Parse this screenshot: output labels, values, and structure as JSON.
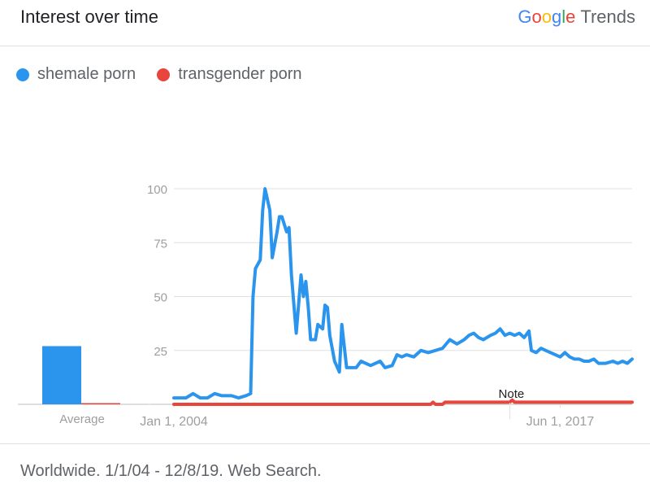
{
  "header": {
    "title": "Interest over time"
  },
  "brand": {
    "google": [
      "G",
      "o",
      "o",
      "g",
      "l",
      "e"
    ],
    "trends": "Trends"
  },
  "legend": [
    {
      "label": "shemale porn",
      "color": "#2b95ee"
    },
    {
      "label": "transgender porn",
      "color": "#e8453c"
    }
  ],
  "footer": {
    "text": "Worldwide. 1/1/04 - 12/8/19. Web Search."
  },
  "chart_data": {
    "type": "line",
    "ylim": [
      0,
      100
    ],
    "yticks": [
      25,
      50,
      75,
      100
    ],
    "x_range": [
      "2004-01",
      "2019-12"
    ],
    "xtick_labels": [
      {
        "label": "Jan 1, 2004",
        "x": "2004-01"
      },
      {
        "label": "Jun 1, 2017",
        "x": "2017-06"
      }
    ],
    "grid": true,
    "legend_position": "top-left",
    "average": {
      "label": "Average",
      "values": [
        27,
        0
      ]
    },
    "note": {
      "label": "Note",
      "x": "2015-09"
    },
    "series": [
      {
        "name": "shemale porn",
        "color": "#2b95ee",
        "points": [
          [
            "2004-01",
            3
          ],
          [
            "2004-06",
            3
          ],
          [
            "2004-09",
            5
          ],
          [
            "2004-12",
            3
          ],
          [
            "2005-03",
            3
          ],
          [
            "2005-06",
            5
          ],
          [
            "2005-09",
            4
          ],
          [
            "2006-01",
            4
          ],
          [
            "2006-04",
            3
          ],
          [
            "2006-07",
            4
          ],
          [
            "2006-09",
            5
          ],
          [
            "2006-10",
            50
          ],
          [
            "2006-11",
            63
          ],
          [
            "2007-01",
            67
          ],
          [
            "2007-02",
            90
          ],
          [
            "2007-03",
            100
          ],
          [
            "2007-05",
            90
          ],
          [
            "2007-06",
            68
          ],
          [
            "2007-08",
            80
          ],
          [
            "2007-09",
            87
          ],
          [
            "2007-10",
            87
          ],
          [
            "2007-12",
            80
          ],
          [
            "2008-01",
            82
          ],
          [
            "2008-02",
            60
          ],
          [
            "2008-04",
            33
          ],
          [
            "2008-06",
            60
          ],
          [
            "2008-07",
            50
          ],
          [
            "2008-08",
            57
          ],
          [
            "2008-09",
            45
          ],
          [
            "2008-10",
            30
          ],
          [
            "2008-12",
            30
          ],
          [
            "2009-01",
            37
          ],
          [
            "2009-03",
            35
          ],
          [
            "2009-04",
            46
          ],
          [
            "2009-05",
            45
          ],
          [
            "2009-06",
            32
          ],
          [
            "2009-08",
            20
          ],
          [
            "2009-10",
            15
          ],
          [
            "2009-11",
            37
          ],
          [
            "2010-01",
            17
          ],
          [
            "2010-05",
            17
          ],
          [
            "2010-07",
            20
          ],
          [
            "2010-11",
            18
          ],
          [
            "2011-03",
            20
          ],
          [
            "2011-05",
            17
          ],
          [
            "2011-08",
            18
          ],
          [
            "2011-10",
            23
          ],
          [
            "2011-12",
            22
          ],
          [
            "2012-02",
            23
          ],
          [
            "2012-05",
            22
          ],
          [
            "2012-08",
            25
          ],
          [
            "2012-11",
            24
          ],
          [
            "2013-02",
            25
          ],
          [
            "2013-05",
            26
          ],
          [
            "2013-08",
            30
          ],
          [
            "2013-11",
            28
          ],
          [
            "2014-02",
            30
          ],
          [
            "2014-04",
            32
          ],
          [
            "2014-06",
            33
          ],
          [
            "2014-08",
            31
          ],
          [
            "2014-10",
            30
          ],
          [
            "2015-01",
            32
          ],
          [
            "2015-03",
            33
          ],
          [
            "2015-05",
            35
          ],
          [
            "2015-07",
            32
          ],
          [
            "2015-09",
            33
          ],
          [
            "2015-11",
            32
          ],
          [
            "2016-01",
            33
          ],
          [
            "2016-03",
            31
          ],
          [
            "2016-05",
            34
          ],
          [
            "2016-06",
            25
          ],
          [
            "2016-08",
            24
          ],
          [
            "2016-10",
            26
          ],
          [
            "2016-12",
            25
          ],
          [
            "2017-02",
            24
          ],
          [
            "2017-04",
            23
          ],
          [
            "2017-06",
            22
          ],
          [
            "2017-08",
            24
          ],
          [
            "2017-10",
            22
          ],
          [
            "2017-12",
            21
          ],
          [
            "2018-02",
            21
          ],
          [
            "2018-04",
            20
          ],
          [
            "2018-06",
            20
          ],
          [
            "2018-08",
            21
          ],
          [
            "2018-10",
            19
          ],
          [
            "2019-01",
            19
          ],
          [
            "2019-04",
            20
          ],
          [
            "2019-06",
            19
          ],
          [
            "2019-08",
            20
          ],
          [
            "2019-10",
            19
          ],
          [
            "2019-11",
            20
          ],
          [
            "2019-12",
            21
          ]
        ]
      },
      {
        "name": "transgender porn",
        "color": "#e8453c",
        "points": [
          [
            "2004-01",
            0
          ],
          [
            "2012-12",
            0
          ],
          [
            "2013-01",
            1
          ],
          [
            "2013-02",
            0
          ],
          [
            "2013-05",
            0
          ],
          [
            "2013-06",
            1
          ],
          [
            "2014-06",
            1
          ],
          [
            "2015-09",
            1
          ],
          [
            "2015-10",
            2
          ],
          [
            "2015-11",
            1
          ],
          [
            "2019-12",
            1
          ]
        ]
      }
    ]
  }
}
